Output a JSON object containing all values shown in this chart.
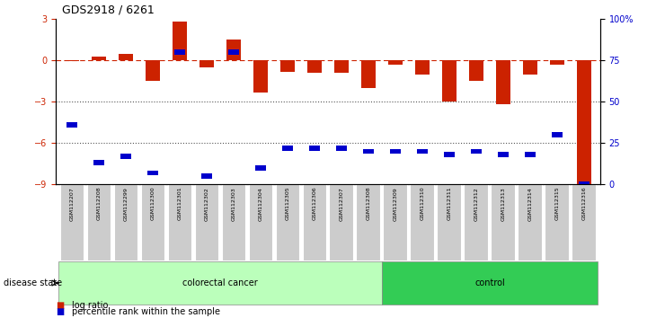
{
  "title": "GDS2918 / 6261",
  "samples": [
    "GSM112207",
    "GSM112208",
    "GSM112299",
    "GSM112300",
    "GSM112301",
    "GSM112302",
    "GSM112303",
    "GSM112304",
    "GSM112305",
    "GSM112306",
    "GSM112307",
    "GSM112308",
    "GSM112309",
    "GSM112310",
    "GSM112311",
    "GSM112312",
    "GSM112313",
    "GSM112314",
    "GSM112315",
    "GSM112316"
  ],
  "log_ratio": [
    -0.05,
    0.3,
    0.5,
    -1.5,
    2.8,
    -0.5,
    1.5,
    -2.3,
    -0.8,
    -0.9,
    -0.9,
    -2.0,
    -0.3,
    -1.0,
    -3.0,
    -1.5,
    -3.2,
    -1.0,
    -0.3,
    -9.0
  ],
  "percentile_rank": [
    36,
    13,
    17,
    7,
    80,
    5,
    80,
    10,
    22,
    22,
    22,
    20,
    20,
    20,
    18,
    20,
    18,
    18,
    30,
    0
  ],
  "colorectal_count": 12,
  "control_count": 8,
  "bar_color": "#CC2200",
  "dot_color": "#0000CC",
  "dashed_line_color": "#CC2200",
  "dotted_line_color": "#555555",
  "ylim_min": -9,
  "ylim_max": 3,
  "yticks_left": [
    3,
    0,
    -3,
    -6,
    -9
  ],
  "right_pct_ticks": [
    100,
    75,
    50,
    25,
    0
  ],
  "right_ylabels": [
    "100%",
    "75",
    "50",
    "25",
    "0"
  ],
  "colorectal_color": "#BBFFBB",
  "control_color": "#33CC55",
  "tick_bg_color": "#CCCCCC",
  "legend_bar_label": "log ratio",
  "legend_dot_label": "percentile rank within the sample",
  "disease_state_label": "disease state"
}
